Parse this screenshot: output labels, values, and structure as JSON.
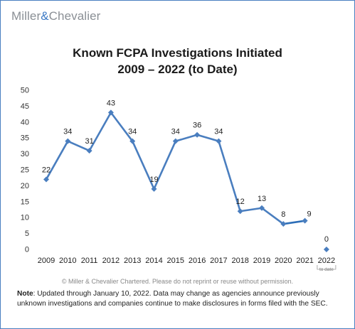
{
  "brand": {
    "name_left": "Miller",
    "ampersand": "&",
    "name_right": "Chevalier"
  },
  "copyright": "© Miller & Chevalier Chartered. Please do not reprint or reuse without permission.",
  "note": {
    "label": "Note",
    "text": ": Updated through January 10, 2022. Data may change as agencies announce previously unknown investigations and companies continue to make disclosures in forms filed with the SEC."
  },
  "chart_data": {
    "type": "line",
    "title": "Known FCPA Investigations Initiated",
    "subtitle": "2009 – 2022 (to Date)",
    "xlabel": "",
    "ylabel": "",
    "ylim": [
      0,
      50
    ],
    "yticks": [
      0,
      5,
      10,
      15,
      20,
      25,
      30,
      35,
      40,
      45,
      50
    ],
    "grid": false,
    "categories": [
      "2009",
      "2010",
      "2011",
      "2012",
      "2013",
      "2014",
      "2015",
      "2016",
      "2017",
      "2018",
      "2019",
      "2020",
      "2021",
      "2022"
    ],
    "series": [
      {
        "values": [
          22,
          34,
          31,
          43,
          34,
          19,
          34,
          36,
          34,
          12,
          13,
          8,
          9,
          0
        ]
      }
    ],
    "annotations": [
      {
        "category": "2022",
        "text": "to date"
      }
    ],
    "colors": {
      "line": "#4a7ebf",
      "segment_2020_2021": "#2e6fb8",
      "marker": "#4a7ebf"
    }
  }
}
